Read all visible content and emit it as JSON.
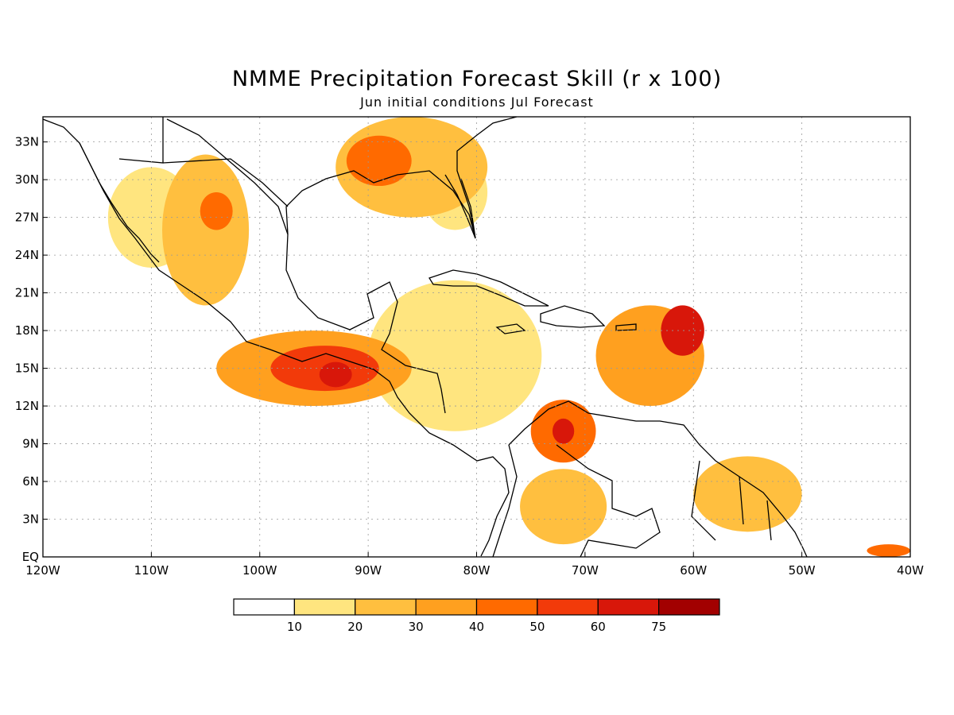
{
  "title": "NMME Precipitation Forecast Skill (r x 100)",
  "subtitle": "Jun initial conditions  Jul Forecast",
  "map": {
    "lon_range": [
      -120,
      -40
    ],
    "lat_range": [
      0,
      35
    ],
    "lon_labels": [
      {
        "value": -120,
        "text": "120W"
      },
      {
        "value": -110,
        "text": "110W"
      },
      {
        "value": -100,
        "text": "100W"
      },
      {
        "value": -90,
        "text": "90W"
      },
      {
        "value": -80,
        "text": "80W"
      },
      {
        "value": -70,
        "text": "70W"
      },
      {
        "value": -60,
        "text": "60W"
      },
      {
        "value": -50,
        "text": "50W"
      },
      {
        "value": -40,
        "text": "40W"
      }
    ],
    "lat_labels": [
      {
        "value": 0,
        "text": "EQ"
      },
      {
        "value": 3,
        "text": "3N"
      },
      {
        "value": 6,
        "text": "6N"
      },
      {
        "value": 9,
        "text": "9N"
      },
      {
        "value": 12,
        "text": "12N"
      },
      {
        "value": 15,
        "text": "15N"
      },
      {
        "value": 18,
        "text": "18N"
      },
      {
        "value": 21,
        "text": "21N"
      },
      {
        "value": 24,
        "text": "24N"
      },
      {
        "value": 27,
        "text": "27N"
      },
      {
        "value": 30,
        "text": "30N"
      },
      {
        "value": 33,
        "text": "33N"
      }
    ],
    "grid": true,
    "skill_regions": [
      {
        "lon": -110,
        "lat": 27,
        "rx": 4,
        "ry": 4,
        "level": 1
      },
      {
        "lon": -105,
        "lat": 26,
        "rx": 4,
        "ry": 6,
        "level": 2
      },
      {
        "lon": -104,
        "lat": 27.5,
        "rx": 1.5,
        "ry": 1.5,
        "level": 4
      },
      {
        "lon": -86,
        "lat": 31,
        "rx": 7,
        "ry": 4,
        "level": 2
      },
      {
        "lon": -89,
        "lat": 31.5,
        "rx": 3,
        "ry": 2,
        "level": 4
      },
      {
        "lon": -82,
        "lat": 29,
        "rx": 3,
        "ry": 3,
        "level": 1
      },
      {
        "lon": -95,
        "lat": 15,
        "rx": 9,
        "ry": 3,
        "level": 3
      },
      {
        "lon": -94,
        "lat": 15,
        "rx": 5,
        "ry": 1.8,
        "level": 5
      },
      {
        "lon": -93,
        "lat": 14.5,
        "rx": 1.5,
        "ry": 1,
        "level": 6
      },
      {
        "lon": -82,
        "lat": 16,
        "rx": 8,
        "ry": 6,
        "level": 1
      },
      {
        "lon": -72,
        "lat": 10,
        "rx": 3,
        "ry": 2.5,
        "level": 4
      },
      {
        "lon": -72,
        "lat": 10,
        "rx": 1,
        "ry": 1,
        "level": 6
      },
      {
        "lon": -72,
        "lat": 4,
        "rx": 4,
        "ry": 3,
        "level": 2
      },
      {
        "lon": -64,
        "lat": 16,
        "rx": 5,
        "ry": 4,
        "level": 3
      },
      {
        "lon": -61,
        "lat": 18,
        "rx": 2,
        "ry": 2,
        "level": 6
      },
      {
        "lon": -55,
        "lat": 5,
        "rx": 5,
        "ry": 3,
        "level": 2
      },
      {
        "lon": -42,
        "lat": 0.5,
        "rx": 2,
        "ry": 0.5,
        "level": 4
      }
    ]
  },
  "colorbar": {
    "colors": [
      "#ffffff",
      "#ffe57f",
      "#ffbf3f",
      "#ffa01f",
      "#ff6a00",
      "#f23a0a",
      "#d8170a",
      "#a20000"
    ],
    "labels": [
      "10",
      "20",
      "30",
      "40",
      "50",
      "60",
      "75"
    ]
  }
}
